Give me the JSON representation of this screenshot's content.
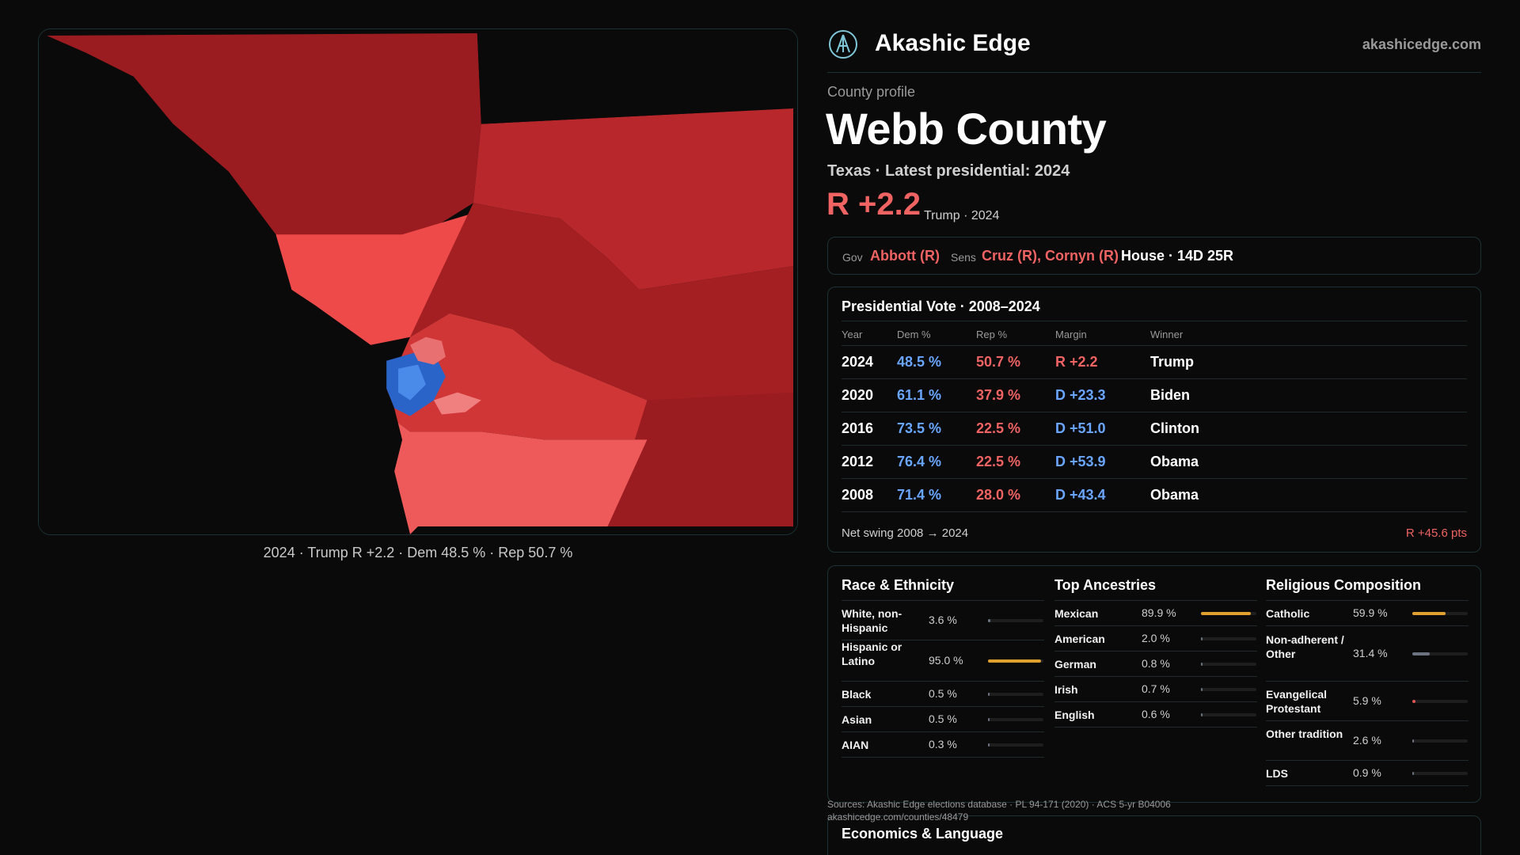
{
  "brand": {
    "name": "Akashic Edge",
    "url": "akashicedge.com"
  },
  "profile": {
    "section_label": "County profile",
    "title": "Webb County",
    "subtitle": "Texas · Latest presidential: 2024",
    "margin": "R +2.2",
    "margin_note": "Trump · 2024"
  },
  "officials": {
    "gov_label": "Gov",
    "gov": "Abbott (R)",
    "sens_label": "Sens",
    "sens": "Cruz (R), Cornyn (R)",
    "house": "House · 14D 25R"
  },
  "map_caption": "2024 · Trump R +2.2 · Dem 48.5 % · Rep 50.7 %",
  "presidential": {
    "title": "Presidential Vote · 2008–2024",
    "headers": [
      "Year",
      "Dem %",
      "Rep %",
      "Margin",
      "Winner"
    ],
    "rows": [
      {
        "year": "2024",
        "dem": "48.5 %",
        "rep": "50.7 %",
        "margin": "R +2.2",
        "winner": "Trump",
        "party": "R"
      },
      {
        "year": "2020",
        "dem": "61.1 %",
        "rep": "37.9 %",
        "margin": "D +23.3",
        "winner": "Biden",
        "party": "D"
      },
      {
        "year": "2016",
        "dem": "73.5 %",
        "rep": "22.5 %",
        "margin": "D +51.0",
        "winner": "Clinton",
        "party": "D"
      },
      {
        "year": "2012",
        "dem": "76.4 %",
        "rep": "22.5 %",
        "margin": "D +53.9",
        "winner": "Obama",
        "party": "D"
      },
      {
        "year": "2008",
        "dem": "71.4 %",
        "rep": "28.0 %",
        "margin": "D +43.4",
        "winner": "Obama",
        "party": "D"
      }
    ],
    "swing_label": "Net swing 2008 → 2024",
    "swing_value": "R +45.6 pts"
  },
  "race": {
    "title": "Race & Ethnicity",
    "items": [
      {
        "label": "White, non-Hispanic",
        "pct": "3.6 %",
        "value": 3.6
      },
      {
        "label": "Hispanic or Latino",
        "pct": "95.0 %",
        "value": 95.0
      },
      {
        "label": "Black",
        "pct": "0.5 %",
        "value": 0.5
      },
      {
        "label": "Asian",
        "pct": "0.5 %",
        "value": 0.5
      },
      {
        "label": "AIAN",
        "pct": "0.3 %",
        "value": 0.3
      }
    ]
  },
  "ancestry": {
    "title": "Top Ancestries",
    "items": [
      {
        "label": "Mexican",
        "pct": "89.9 %",
        "value": 89.9
      },
      {
        "label": "American",
        "pct": "2.0 %",
        "value": 2.0
      },
      {
        "label": "German",
        "pct": "0.8 %",
        "value": 0.8
      },
      {
        "label": "Irish",
        "pct": "0.7 %",
        "value": 0.7
      },
      {
        "label": "English",
        "pct": "0.6 %",
        "value": 0.6
      }
    ]
  },
  "religion": {
    "title": "Religious Composition",
    "items": [
      {
        "label": "Catholic",
        "pct": "59.9 %",
        "value": 59.9
      },
      {
        "label": "Non-adherent / Other",
        "pct": "31.4 %",
        "value": 31.4
      },
      {
        "label": "Evangelical Protestant",
        "pct": "5.9 %",
        "value": 5.9
      },
      {
        "label": "Other tradition",
        "pct": "2.6 %",
        "value": 2.6
      },
      {
        "label": "LDS",
        "pct": "0.9 %",
        "value": 0.9
      }
    ]
  },
  "colors": {
    "accent_gold": "#e0a030",
    "rep": "#ef6363",
    "dem": "#6aa6ff",
    "grey_bar": "#6b7280",
    "evangelical_bar": "#e05555"
  },
  "sources": {
    "line1": "Sources: Akashic Edge elections database · PL 94-171 (2020) · ACS 5-yr B04006",
    "line2": "akashicedge.com/counties/48479"
  },
  "econ_title": "Economics & Language"
}
